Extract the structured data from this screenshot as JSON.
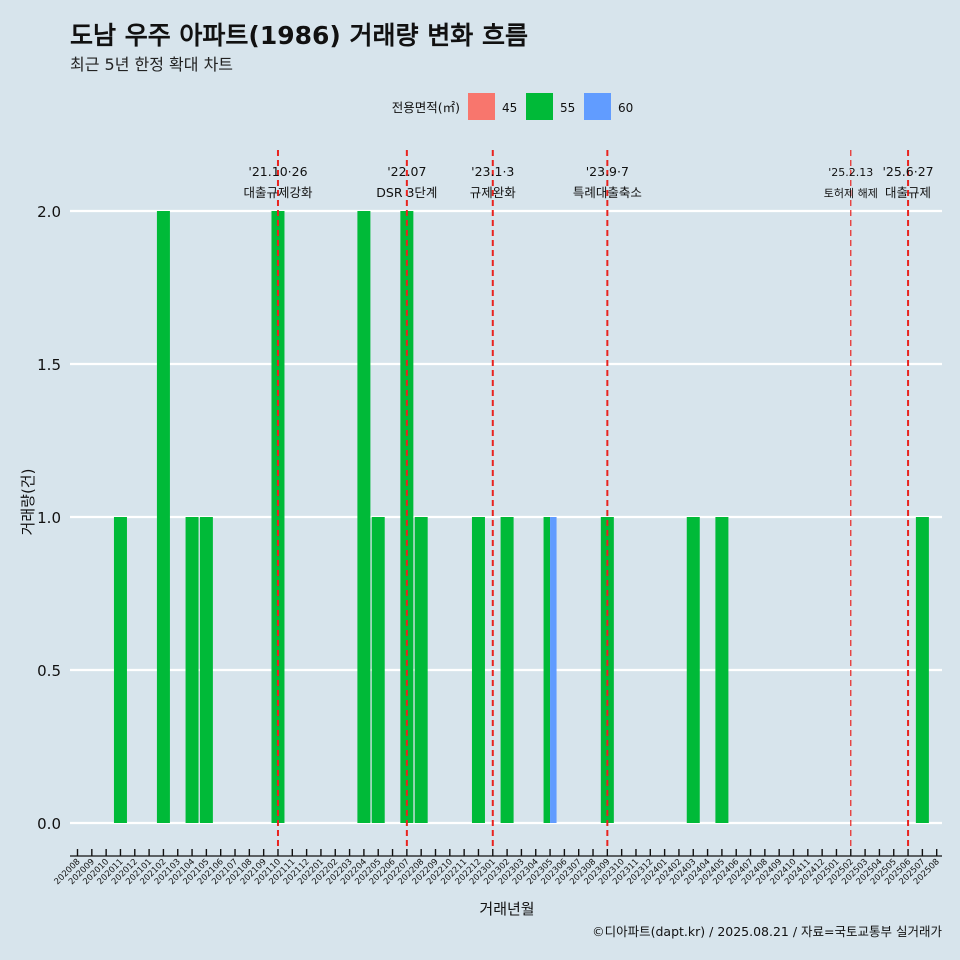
{
  "chart_data": {
    "type": "bar",
    "title": "도남 우주 아파트(1986) 거래량 변화 흐름",
    "subtitle": "최근 5년 한정 확대 차트",
    "xlabel": "거래년월",
    "ylabel": "거래량(건)",
    "ylim": [
      0,
      2.1
    ],
    "yticks": [
      "0.0",
      "0.5",
      "1.0",
      "1.5",
      "2.0"
    ],
    "ytick_values": [
      0,
      0.5,
      1.0,
      1.5,
      2.0
    ],
    "legend": {
      "title": "전용면적(㎡)",
      "placement": "top",
      "items": [
        {
          "label": "45",
          "color": "#f8766d"
        },
        {
          "label": "55",
          "color": "#00ba38"
        },
        {
          "label": "60",
          "color": "#619cff"
        }
      ]
    },
    "categories": [
      "202008",
      "202009",
      "202010",
      "202011",
      "202012",
      "202101",
      "202102",
      "202103",
      "202104",
      "202105",
      "202106",
      "202107",
      "202108",
      "202109",
      "202110",
      "202111",
      "202112",
      "202201",
      "202202",
      "202203",
      "202204",
      "202205",
      "202206",
      "202207",
      "202208",
      "202209",
      "202210",
      "202211",
      "202212",
      "202301",
      "202302",
      "202303",
      "202304",
      "202305",
      "202306",
      "202307",
      "202308",
      "202309",
      "202310",
      "202311",
      "202312",
      "202401",
      "202402",
      "202403",
      "202404",
      "202405",
      "202406",
      "202407",
      "202408",
      "202409",
      "202410",
      "202411",
      "202412",
      "202501",
      "202502",
      "202503",
      "202504",
      "202505",
      "202506",
      "202507",
      "202508"
    ],
    "series": [
      {
        "name": "55",
        "color": "#00ba38",
        "points": [
          {
            "x": "202011",
            "y": 1
          },
          {
            "x": "202102",
            "y": 2
          },
          {
            "x": "202104",
            "y": 1
          },
          {
            "x": "202105",
            "y": 1
          },
          {
            "x": "202110",
            "y": 2
          },
          {
            "x": "202204",
            "y": 2
          },
          {
            "x": "202205",
            "y": 1
          },
          {
            "x": "202207",
            "y": 2
          },
          {
            "x": "202208",
            "y": 1
          },
          {
            "x": "202212",
            "y": 1
          },
          {
            "x": "202302",
            "y": 1
          },
          {
            "x": "202305",
            "y": 1,
            "part": "left"
          },
          {
            "x": "202309",
            "y": 1
          },
          {
            "x": "202403",
            "y": 1
          },
          {
            "x": "202405",
            "y": 1
          },
          {
            "x": "202507",
            "y": 1
          }
        ]
      },
      {
        "name": "60",
        "color": "#619cff",
        "points": [
          {
            "x": "202305",
            "y": 1,
            "part": "right"
          }
        ]
      }
    ],
    "vlines": [
      {
        "x": "202110",
        "date": "'21.10·26",
        "label": "대출규제강화",
        "style": "thick"
      },
      {
        "x": "202207",
        "date": "'22.07",
        "label": "DSR 3단계",
        "style": "thick"
      },
      {
        "x": "202301",
        "date": "'23.1·3",
        "label": "규제완화",
        "style": "thick"
      },
      {
        "x": "202309",
        "date": "'23.9·7",
        "label": "특례대출축소",
        "style": "thick"
      },
      {
        "x": "202502",
        "date": "'25.2.13",
        "label": "토허제 해제",
        "style": "thin"
      },
      {
        "x": "202506",
        "date": "'25.6·27",
        "label": "대출규제",
        "style": "thick"
      }
    ],
    "caption": "©디아파트(dapt.kr) / 2025.08.21 / 자료=국토교통부 실거래가"
  }
}
